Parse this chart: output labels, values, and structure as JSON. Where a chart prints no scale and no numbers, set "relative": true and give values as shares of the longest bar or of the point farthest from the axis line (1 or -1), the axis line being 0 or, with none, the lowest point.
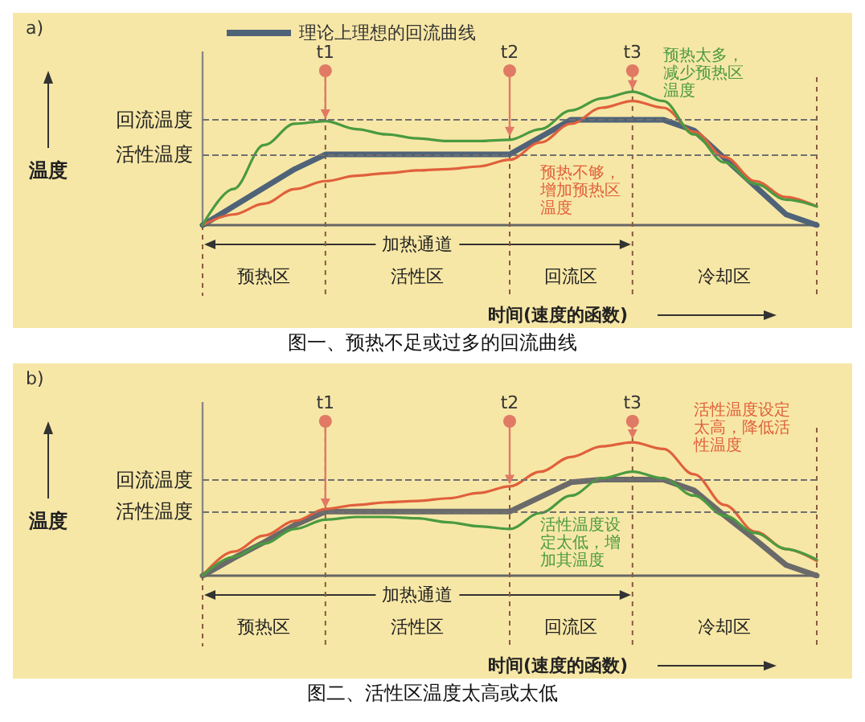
{
  "chart_data": [
    {
      "type": "line",
      "title": "图一、预热不足或过多的回流曲线",
      "xlabel": "时间(速度的函数)",
      "ylabel": "温度",
      "relative": true,
      "grid": "x",
      "legend": "top left",
      "marker": "none",
      "line_style": "solid",
      "categories": [
        null,
        null,
        null,
        null,
        null,
        null,
        null,
        null,
        null,
        null,
        null,
        null,
        null,
        null,
        null,
        null,
        null,
        null,
        null,
        null,
        null
      ],
      "series": [
        {
          "name": "理论上理想的回流曲线",
          "color": "#4f6378",
          "values": [
            0,
            0.14,
            0.28,
            0.42,
            0.53,
            0.53,
            0.53,
            0.53,
            0.53,
            0.53,
            0.53,
            0.66,
            0.79,
            0.79,
            0.79,
            0.79,
            0.71,
            0.5,
            0.29,
            0.08,
            0
          ]
        },
        {
          "color": "#e0603c",
          "values": [
            0,
            0.08,
            0.16,
            0.27,
            0.33,
            0.37,
            0.39,
            0.41,
            0.42,
            0.44,
            0.49,
            0.62,
            0.76,
            0.88,
            0.93,
            0.88,
            0.7,
            0.51,
            0.33,
            0.21,
            0.14
          ]
        },
        {
          "color": "#4a9a40",
          "values": [
            0,
            0.27,
            0.6,
            0.76,
            0.78,
            0.72,
            0.68,
            0.65,
            0.63,
            0.63,
            0.64,
            0.72,
            0.86,
            0.95,
            1,
            0.93,
            0.68,
            0.47,
            0.31,
            0.19,
            0.14
          ]
        }
      ],
      "ref_lines": [
        {
          "axis": "y",
          "value": 0.79,
          "label": "回流温度",
          "color": "#707070",
          "line_style": "dashed"
        },
        {
          "axis": "y",
          "value": 0.53,
          "label": "活性温度",
          "color": "#707070",
          "line_style": "dashed"
        }
      ],
      "annotations": [
        "a)",
        "t1",
        "t2",
        "t3",
        "加热通道",
        "预热区",
        "活性区",
        "回流区",
        "冷却区",
        "预热太多，减少预热区温度",
        "预热不够，增加预热区温度"
      ]
    },
    {
      "type": "line",
      "title": "图二、活性区温度太高或太低",
      "xlabel": "时间(速度的函数)",
      "ylabel": "温度",
      "relative": true,
      "grid": "x",
      "legend": false,
      "marker": "none",
      "line_style": "solid",
      "categories": [
        null,
        null,
        null,
        null,
        null,
        null,
        null,
        null,
        null,
        null,
        null,
        null,
        null,
        null,
        null,
        null,
        null,
        null,
        null,
        null,
        null
      ],
      "series": [
        {
          "color": "#6a6a6a",
          "values": [
            0,
            0.13,
            0.25,
            0.38,
            0.48,
            0.48,
            0.48,
            0.48,
            0.48,
            0.48,
            0.48,
            0.59,
            0.7,
            0.72,
            0.72,
            0.72,
            0.64,
            0.45,
            0.27,
            0.08,
            0
          ]
        },
        {
          "color": "#e0603c",
          "values": [
            0,
            0.18,
            0.3,
            0.41,
            0.5,
            0.53,
            0.55,
            0.56,
            0.58,
            0.62,
            0.67,
            0.78,
            0.89,
            0.97,
            1,
            0.95,
            0.76,
            0.53,
            0.33,
            0.2,
            0.11
          ]
        },
        {
          "color": "#4a9a40",
          "values": [
            0,
            0.14,
            0.24,
            0.35,
            0.42,
            0.44,
            0.44,
            0.43,
            0.4,
            0.37,
            0.35,
            0.47,
            0.6,
            0.73,
            0.78,
            0.73,
            0.6,
            0.45,
            0.32,
            0.2,
            0.12
          ]
        }
      ],
      "ref_lines": [
        {
          "axis": "y",
          "value": 0.72,
          "label": "回流温度",
          "color": "#707070",
          "line_style": "dashed"
        },
        {
          "axis": "y",
          "value": 0.48,
          "label": "活性温度",
          "color": "#707070",
          "line_style": "dashed"
        }
      ],
      "annotations": [
        "b)",
        "t1",
        "t2",
        "t3",
        "加热通道",
        "预热区",
        "活性区",
        "回流区",
        "冷却区",
        "活性温度设定太高，降低活性温度",
        "活性温度设定太低，增加其温度"
      ]
    }
  ]
}
